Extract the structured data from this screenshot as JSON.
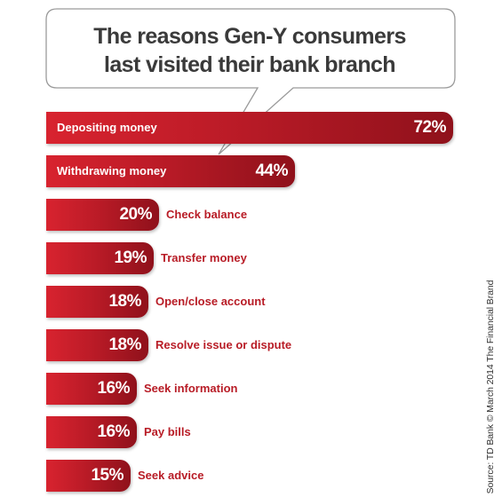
{
  "chart_data": {
    "type": "bar",
    "orientation": "horizontal",
    "title_lines": [
      "The reasons Gen-Y consumers",
      "last visited their bank branch"
    ],
    "categories": [
      "Depositing money",
      "Withdrawing money",
      "Check balance",
      "Transfer money",
      "Open/close account",
      "Resolve issue or dispute",
      "Seek information",
      "Pay bills",
      "Seek advice"
    ],
    "values": [
      72,
      44,
      20,
      19,
      18,
      18,
      16,
      16,
      15
    ],
    "value_labels": [
      "72%",
      "44%",
      "20%",
      "19%",
      "18%",
      "18%",
      "16%",
      "16%",
      "15%"
    ],
    "unit": "%",
    "xlim": [
      0,
      72
    ],
    "grid": false,
    "bar_color": "#c41e2a",
    "source": "Source: TD Bank © March 2014 The Financial Brand"
  }
}
